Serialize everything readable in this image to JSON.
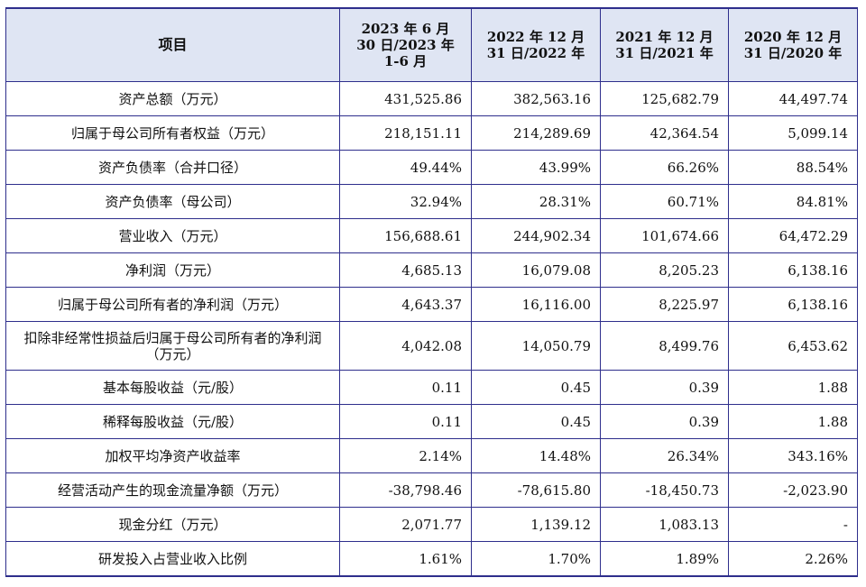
{
  "table": {
    "headers": [
      "项目",
      "2023 年 6 月\n30 日/2023 年\n1-6 月",
      "2022 年 12 月\n31 日/2022 年",
      "2021 年 12 月\n31 日/2021 年",
      "2020 年 12 月\n31 日/2020 年"
    ],
    "rows": [
      {
        "label": "资产总额（万元）",
        "values": [
          "431,525.86",
          "382,563.16",
          "125,682.79",
          "44,497.74"
        ]
      },
      {
        "label": "归属于母公司所有者权益（万元）",
        "values": [
          "218,151.11",
          "214,289.69",
          "42,364.54",
          "5,099.14"
        ]
      },
      {
        "label": "资产负债率（合并口径）",
        "values": [
          "49.44%",
          "43.99%",
          "66.26%",
          "88.54%"
        ]
      },
      {
        "label": "资产负债率（母公司）",
        "values": [
          "32.94%",
          "28.31%",
          "60.71%",
          "84.81%"
        ]
      },
      {
        "label": "营业收入（万元）",
        "values": [
          "156,688.61",
          "244,902.34",
          "101,674.66",
          "64,472.29"
        ]
      },
      {
        "label": "净利润（万元）",
        "values": [
          "4,685.13",
          "16,079.08",
          "8,205.23",
          "6,138.16"
        ]
      },
      {
        "label": "归属于母公司所有者的净利润（万元）",
        "values": [
          "4,643.37",
          "16,116.00",
          "8,225.97",
          "6,138.16"
        ]
      },
      {
        "label": "扣除非经常性损益后归属于母公司所有者的净利润（万元）",
        "values": [
          "4,042.08",
          "14,050.79",
          "8,499.76",
          "6,453.62"
        ]
      },
      {
        "label": "基本每股收益（元/股）",
        "values": [
          "0.11",
          "0.45",
          "0.39",
          "1.88"
        ]
      },
      {
        "label": "稀释每股收益（元/股）",
        "values": [
          "0.11",
          "0.45",
          "0.39",
          "1.88"
        ]
      },
      {
        "label": "加权平均净资产收益率",
        "values": [
          "2.14%",
          "14.48%",
          "26.34%",
          "343.16%"
        ]
      },
      {
        "label": "经营活动产生的现金流量净额（万元）",
        "values": [
          "-38,798.46",
          "-78,615.80",
          "-18,450.73",
          "-2,023.90"
        ]
      },
      {
        "label": "现金分红（万元）",
        "values": [
          "2,071.77",
          "1,139.12",
          "1,083.13",
          "-"
        ]
      },
      {
        "label": "研发投入占营业收入比例",
        "values": [
          "1.61%",
          "1.70%",
          "1.89%",
          "2.26%"
        ]
      }
    ]
  }
}
